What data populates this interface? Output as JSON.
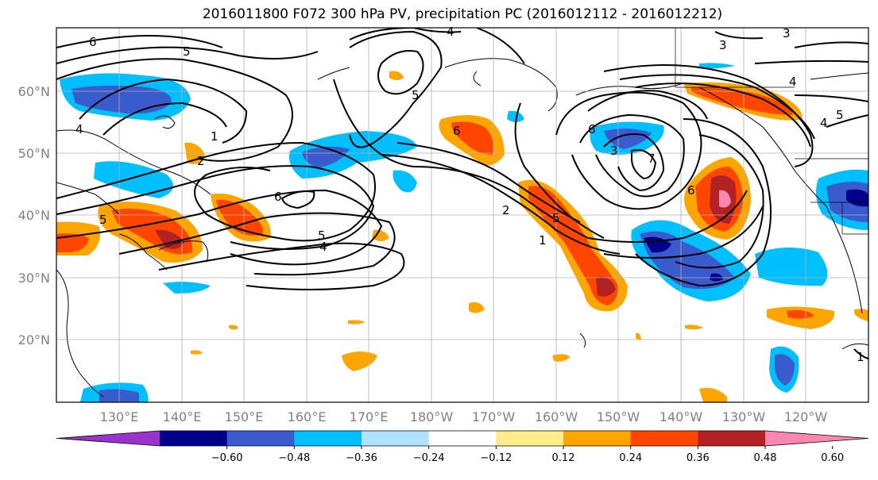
{
  "title": "2016011800 F072 300 hPa PV, precipitation PC (2016012112 - 2016012212)",
  "lat_labels": [
    "60°N",
    "50°N",
    "40°N",
    "30°N",
    "20°N"
  ],
  "lon_labels": [
    "130°E",
    "140°E",
    "150°E",
    "160°E",
    "170°E",
    "180°W",
    "170°W",
    "160°W",
    "150°W",
    "140°W",
    "130°W",
    "120°W"
  ],
  "colorbar": {
    "ticks": [
      "−0.60",
      "−0.48",
      "−0.36",
      "−0.24",
      "−0.12",
      "0.12",
      "0.24",
      "0.36",
      "0.48",
      "0.60"
    ],
    "colors": [
      "#9933cc",
      "#00008b",
      "#3a5bcd",
      "#00bfff",
      "#b0e2ff",
      "#ffffff",
      "#ffeb8a",
      "#ffa500",
      "#ff4500",
      "#b22222",
      "#ff86b0"
    ]
  },
  "contour_labels": [
    "6",
    "5",
    "4",
    "4",
    "1",
    "2",
    "5",
    "6",
    "5",
    "4",
    "2",
    "1",
    "5",
    "6",
    "3",
    "6",
    "7",
    "5",
    "4",
    "3",
    "4",
    "6",
    "3",
    "1",
    "5"
  ]
}
